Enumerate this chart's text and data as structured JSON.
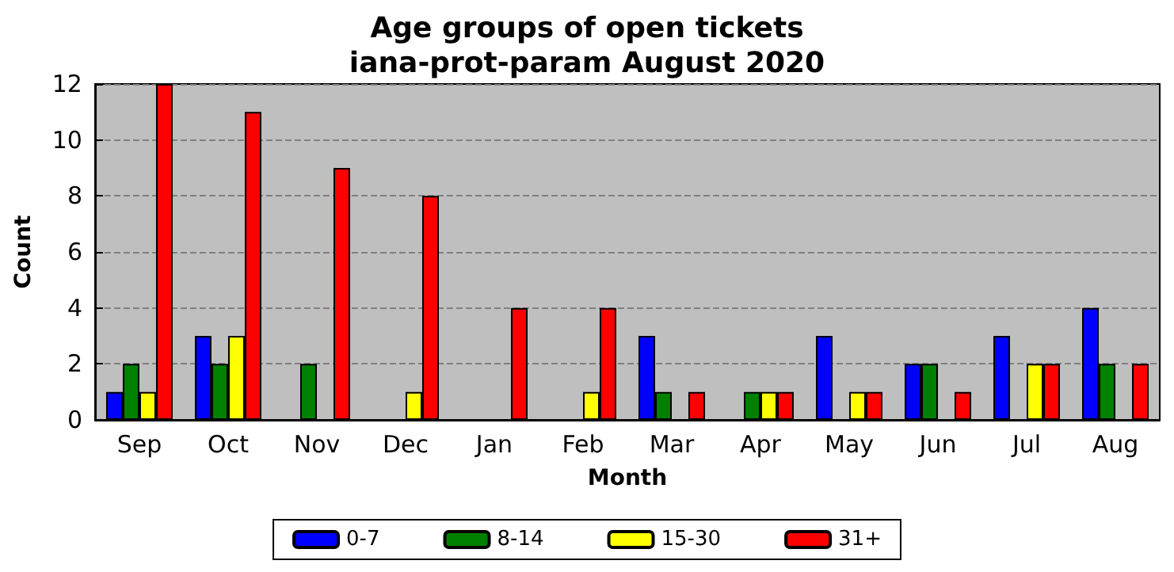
{
  "chart_data": {
    "type": "bar",
    "title": "Age groups of open tickets\niana-prot-param August 2020",
    "xlabel": "Month",
    "ylabel": "Count",
    "categories": [
      "Sep",
      "Oct",
      "Nov",
      "Dec",
      "Jan",
      "Feb",
      "Mar",
      "Apr",
      "May",
      "Jun",
      "Jul",
      "Aug"
    ],
    "series": [
      {
        "name": "0-7",
        "color": "#0000ff",
        "values": [
          1,
          3,
          0,
          0,
          0,
          0,
          3,
          0,
          3,
          2,
          3,
          4
        ]
      },
      {
        "name": "8-14",
        "color": "#008000",
        "values": [
          2,
          2,
          2,
          0,
          0,
          0,
          1,
          1,
          0,
          2,
          0,
          2
        ]
      },
      {
        "name": "15-30",
        "color": "#ffff00",
        "values": [
          1,
          3,
          0,
          1,
          0,
          1,
          0,
          1,
          1,
          0,
          2,
          0
        ]
      },
      {
        "name": "31+",
        "color": "#ff0000",
        "values": [
          12,
          11,
          9,
          8,
          4,
          4,
          1,
          1,
          1,
          1,
          2,
          2
        ]
      }
    ],
    "ylim": [
      0,
      12
    ],
    "yticks": [
      0,
      2,
      4,
      6,
      8,
      10,
      12
    ],
    "grid": "y",
    "legend": "bottom"
  }
}
